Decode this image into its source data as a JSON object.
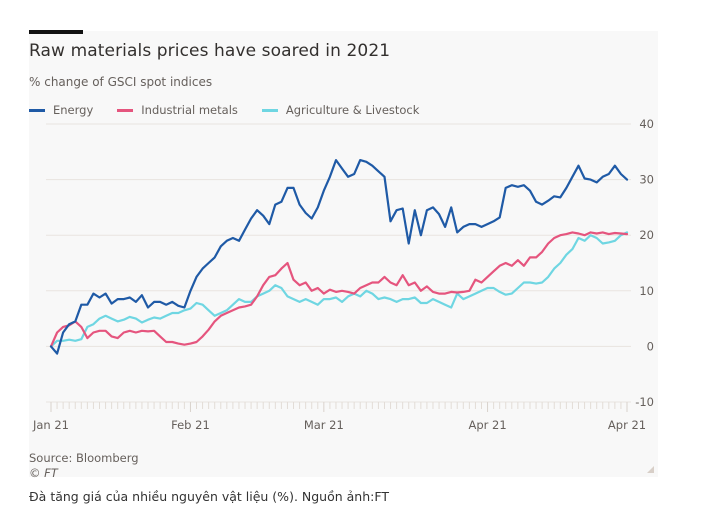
{
  "chart_data": {
    "type": "line",
    "title": "Raw materials prices have soared in 2021",
    "subtitle": "% change of GSCI spot indices",
    "xlabel": "",
    "ylabel": "",
    "ylim": [
      -10,
      40
    ],
    "yticks": [
      40,
      30,
      20,
      10,
      0,
      -10
    ],
    "ytick_labels": [
      "40",
      "30",
      "20",
      "10",
      "0",
      "-10"
    ],
    "xtick_labels": [
      "Jan 21",
      "Feb 21",
      "Mar 21",
      "Apr 21",
      "Apr 21"
    ],
    "xtick_index": [
      0,
      23,
      45,
      72,
      95
    ],
    "grid": true,
    "legend_position": "top-left",
    "series": [
      {
        "name": "Energy",
        "color": "#1f5aa6",
        "values": [
          0,
          -1.3,
          2.5,
          4,
          4.5,
          7.5,
          7.5,
          9.5,
          8.8,
          9.5,
          7.7,
          8.5,
          8.5,
          8.8,
          8.0,
          9.2,
          7.0,
          8.0,
          8.0,
          7.5,
          8.0,
          7.3,
          7.0,
          10,
          12.5,
          14,
          15,
          16,
          18,
          19,
          19.5,
          19,
          21,
          23,
          24.5,
          23.5,
          22,
          25.5,
          26,
          28.5,
          28.5,
          25.5,
          24,
          23,
          25,
          28,
          30.5,
          33.5,
          32,
          30.5,
          31,
          33.5,
          33.2,
          32.5,
          31.5,
          30.5,
          22.5,
          24.5,
          24.8,
          18.5,
          24.5,
          20,
          24.5,
          25,
          23.8,
          21.5,
          25,
          20.5,
          21.5,
          22,
          22,
          21.5,
          22,
          22.5,
          23.2,
          28.5,
          29,
          28.7,
          29,
          28,
          26,
          25.5,
          26.2,
          27,
          26.8,
          28.5,
          30.5,
          32.5,
          30.2,
          30,
          29.5,
          30.5,
          31,
          32.5,
          31,
          30
        ]
      },
      {
        "name": "Industrial metals",
        "color": "#e5557e",
        "values": [
          0,
          2.5,
          3.5,
          3.8,
          4.5,
          3.5,
          1.5,
          2.5,
          2.8,
          2.8,
          1.8,
          1.5,
          2.5,
          2.8,
          2.5,
          2.8,
          2.7,
          2.8,
          1.8,
          0.8,
          0.8,
          0.5,
          0.3,
          0.5,
          0.8,
          1.8,
          3.0,
          4.5,
          5.5,
          6.0,
          6.5,
          7.0,
          7.2,
          7.5,
          9.0,
          11.0,
          12.5,
          12.8,
          14.0,
          15.0,
          12.0,
          11.0,
          11.5,
          10.0,
          10.5,
          9.5,
          10.2,
          9.8,
          10.0,
          9.8,
          9.5,
          10.5,
          11.0,
          11.5,
          11.5,
          12.5,
          11.5,
          11.0,
          12.8,
          11.0,
          11.5,
          10.0,
          10.8,
          9.8,
          9.5,
          9.5,
          9.8,
          9.7,
          9.8,
          10.0,
          12.0,
          11.5,
          12.5,
          13.5,
          14.5,
          15.0,
          14.5,
          15.5,
          14.5,
          16.0,
          16.0,
          17.0,
          18.5,
          19.5,
          20.0,
          20.2,
          20.5,
          20.3,
          20.0,
          20.5,
          20.3,
          20.5,
          20.2,
          20.4,
          20.3,
          20.2
        ]
      },
      {
        "name": "Agriculture & Livestock",
        "color": "#6fd6e2",
        "values": [
          0,
          1.0,
          1.0,
          1.2,
          1.0,
          1.3,
          3.5,
          4.0,
          5.0,
          5.5,
          5.0,
          4.5,
          4.8,
          5.3,
          5.0,
          4.3,
          4.8,
          5.2,
          5.0,
          5.5,
          6.0,
          6.0,
          6.5,
          6.8,
          7.8,
          7.5,
          6.5,
          5.5,
          6.0,
          6.5,
          7.5,
          8.5,
          8.0,
          8.0,
          9.0,
          9.5,
          10.0,
          11.0,
          10.5,
          9.0,
          8.5,
          8.0,
          8.5,
          8.0,
          7.5,
          8.5,
          8.5,
          8.8,
          8.0,
          9.0,
          9.5,
          9.0,
          10.0,
          9.5,
          8.5,
          8.8,
          8.5,
          8.0,
          8.5,
          8.5,
          8.8,
          7.8,
          7.8,
          8.5,
          8.0,
          7.5,
          7.0,
          9.5,
          8.5,
          9.0,
          9.5,
          10.0,
          10.5,
          10.5,
          9.8,
          9.3,
          9.5,
          10.5,
          11.5,
          11.5,
          11.3,
          11.5,
          12.5,
          14.0,
          15.0,
          16.5,
          17.5,
          19.5,
          19.0,
          20.0,
          19.5,
          18.5,
          18.7,
          19.0,
          20.0,
          20.5
        ]
      }
    ],
    "source": "Source: Bloomberg",
    "copyright": "© FT"
  },
  "caption": "Đà tăng giá của nhiều nguyên vật liệu (%). Nguồn ảnh:FT"
}
